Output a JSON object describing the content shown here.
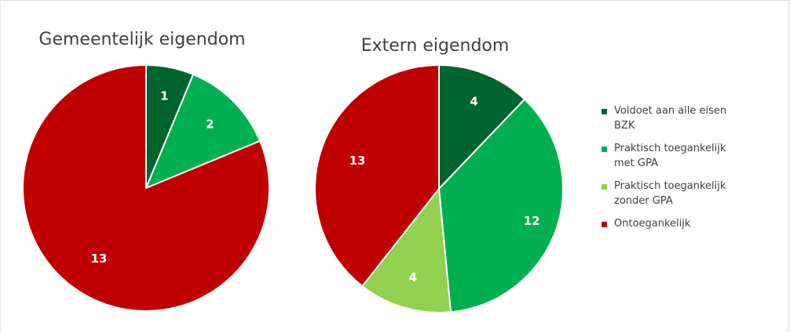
{
  "chart_data": [
    {
      "type": "pie",
      "title": "Gemeentelijk eigendom",
      "categories": [
        "Voldoet aan alle eisen BZK",
        "Praktisch toegankelijk met GPA",
        "Praktisch toegankelijk zonder GPA",
        "Ontoegankelijk"
      ],
      "values": [
        1,
        2,
        0,
        13
      ],
      "data_labels": [
        "1",
        "2",
        "",
        "13"
      ],
      "start_angle_deg": 0,
      "direction": "clockwise"
    },
    {
      "type": "pie",
      "title": "Extern eigendom",
      "categories": [
        "Voldoet aan alle eisen BZK",
        "Praktisch toegankelijk met GPA",
        "Praktisch toegankelijk zonder GPA",
        "Ontoegankelijk"
      ],
      "values": [
        4,
        12,
        4,
        13
      ],
      "data_labels": [
        "4",
        "12",
        "4",
        "13"
      ],
      "start_angle_deg": 0,
      "direction": "clockwise"
    }
  ],
  "legend": {
    "placement": "right",
    "items": [
      {
        "line1": "Voldoet aan alle eisen",
        "line2": "BZK",
        "color": "#00642e"
      },
      {
        "line1": "Praktisch toegankelijk",
        "line2": "met GPA",
        "color": "#00b050"
      },
      {
        "line1": "Praktisch toegankelijk",
        "line2": "zonder GPA",
        "color": "#92d050"
      },
      {
        "line1": "Ontoegankelijk",
        "line2": "",
        "color": "#c00000"
      }
    ]
  },
  "colors": [
    "#00642e",
    "#00b050",
    "#92d050",
    "#c00000"
  ],
  "label_color": "#ffffff"
}
